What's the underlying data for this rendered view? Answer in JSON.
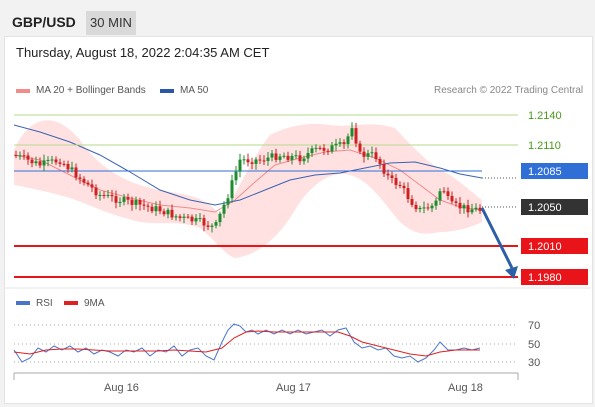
{
  "header": {
    "symbol": "GBP/USD",
    "timeframe": "30 MIN"
  },
  "datetime": "Thursday, August 18, 2022 2:04:35 AM CET",
  "legend": {
    "ma20": {
      "label": "MA 20 + Bollinger Bands",
      "color": "#f28b8b"
    },
    "ma50": {
      "label": "MA 50",
      "color": "#2b57a8"
    }
  },
  "research_note": "Research © 2022 Trading Central",
  "price_levels": [
    {
      "value": "1.2140",
      "style": "green-text"
    },
    {
      "value": "1.2110",
      "style": "green-text"
    },
    {
      "value": "1.2085",
      "style": "blue-box"
    },
    {
      "value": "1.2050",
      "style": "dark-box"
    },
    {
      "value": "1.2010",
      "style": "red-box"
    },
    {
      "value": "1.1980",
      "style": "red-box"
    }
  ],
  "rsi_legend": {
    "rsi": {
      "label": "RSI",
      "color": "#4a74c9"
    },
    "ma9": {
      "label": "9MA",
      "color": "#e02020"
    }
  },
  "rsi_levels": [
    "70",
    "50",
    "30"
  ],
  "x_labels": [
    "Aug 16",
    "Aug 17",
    "Aug 18"
  ],
  "colors": {
    "bull": "#1e8c2e",
    "bear": "#cc2222",
    "support": "#e8141a",
    "pivot": "#2f6fd6",
    "band": "#ffd9d9"
  }
}
